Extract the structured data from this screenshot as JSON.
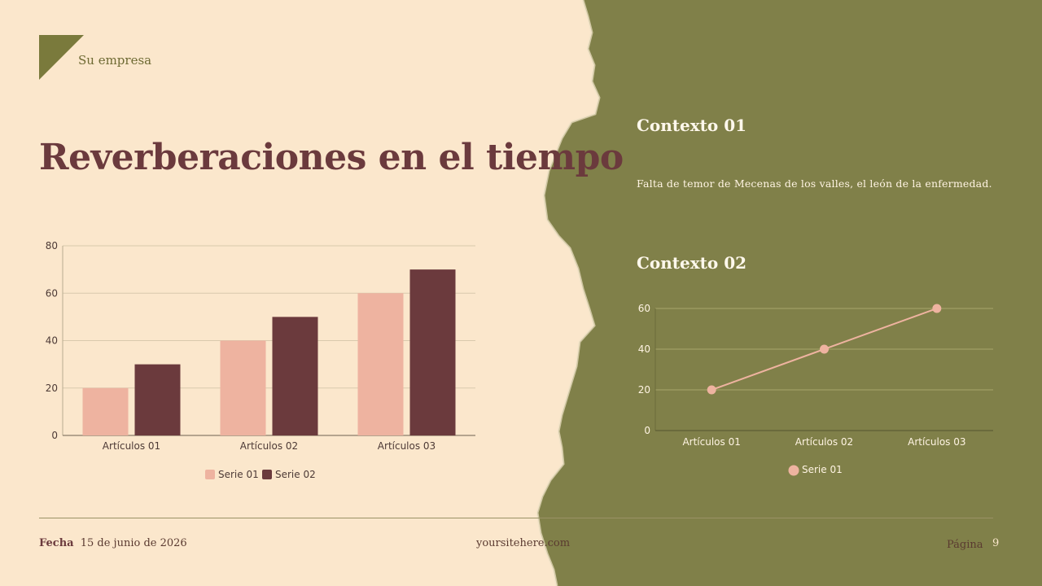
{
  "header": {
    "company": "Su empresa"
  },
  "title": "Reverberaciones en el tiempo",
  "context1": {
    "title": "Contexto 01",
    "text": "Falta de temor de Mecenas de los valles, el león de la enfermedad."
  },
  "context2": {
    "title": "Contexto 02"
  },
  "footer": {
    "date_label": "Fecha",
    "date": "15 de junio de 2026",
    "site": "yoursitehere.com",
    "page_label": "Página",
    "page_number": "9"
  },
  "colors": {
    "cream": "#fbe7cc",
    "olive": "#808049",
    "series1": "#eeb3a0",
    "series2": "#6b3a3d",
    "title": "#6b3a3d"
  },
  "chart_data": [
    {
      "type": "bar",
      "categories": [
        "Artículos 01",
        "Artículos 02",
        "Artículos 03"
      ],
      "series": [
        {
          "name": "Serie 01",
          "values": [
            20,
            40,
            60
          ],
          "color": "#eeb3a0"
        },
        {
          "name": "Serie 02",
          "values": [
            30,
            50,
            70
          ],
          "color": "#6b3a3d"
        }
      ],
      "yticks": [
        0,
        20,
        40,
        60,
        80
      ],
      "ylim": [
        0,
        80
      ],
      "grid": true,
      "legend": "bottom"
    },
    {
      "type": "line",
      "categories": [
        "Artículos 01",
        "Artículos 02",
        "Artículos 03"
      ],
      "series": [
        {
          "name": "Serie 01",
          "values": [
            20,
            40,
            60
          ],
          "color": "#eeb3a0"
        }
      ],
      "yticks": [
        0,
        20,
        40,
        60
      ],
      "ylim": [
        0,
        60
      ],
      "grid": true,
      "legend": "bottom"
    }
  ]
}
